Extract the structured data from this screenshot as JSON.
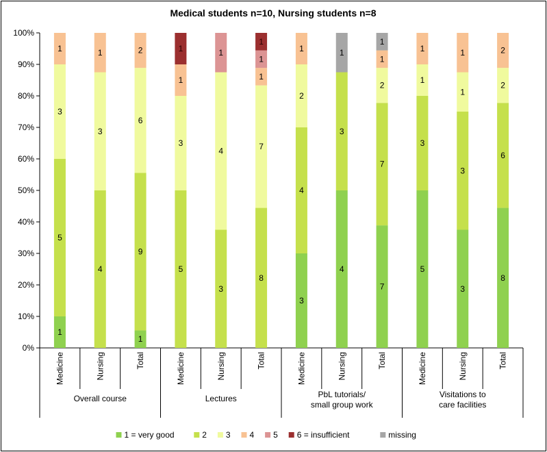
{
  "chart_data": {
    "type": "bar",
    "stacked": "percent",
    "title": "Medical students n=10, Nursing students n=8",
    "y_ticks": [
      "0%",
      "10%",
      "20%",
      "30%",
      "40%",
      "50%",
      "60%",
      "70%",
      "80%",
      "90%",
      "100%"
    ],
    "ylim": [
      0,
      100
    ],
    "grid": false,
    "legend_position": "bottom",
    "groups": [
      {
        "label_lines": [
          "Overall course"
        ],
        "categories": [
          {
            "label": "Medicine",
            "counts": [
              1,
              5,
              3,
              1,
              0,
              0,
              0
            ]
          },
          {
            "label": "Nursing",
            "counts": [
              0,
              4,
              3,
              1,
              0,
              0,
              0
            ]
          },
          {
            "label": "Total",
            "counts": [
              1,
              9,
              6,
              2,
              0,
              0,
              0
            ]
          }
        ]
      },
      {
        "label_lines": [
          "Lectures"
        ],
        "categories": [
          {
            "label": "Medicine",
            "counts": [
              0,
              5,
              3,
              1,
              0,
              1,
              0
            ]
          },
          {
            "label": "Nursing",
            "counts": [
              0,
              3,
              4,
              0,
              1,
              0,
              0
            ]
          },
          {
            "label": "Total",
            "counts": [
              0,
              8,
              7,
              1,
              1,
              1,
              0
            ]
          }
        ]
      },
      {
        "label_lines": [
          "PbL tutorials/",
          "small group work"
        ],
        "categories": [
          {
            "label": "Medicine",
            "counts": [
              3,
              4,
              2,
              1,
              0,
              0,
              0
            ]
          },
          {
            "label": "Nursing",
            "counts": [
              4,
              3,
              0,
              0,
              0,
              0,
              1
            ]
          },
          {
            "label": "Total",
            "counts": [
              7,
              7,
              2,
              1,
              0,
              0,
              1
            ]
          }
        ]
      },
      {
        "label_lines": [
          "Visitations to",
          "care facilities"
        ],
        "categories": [
          {
            "label": "Medicine",
            "counts": [
              5,
              3,
              1,
              1,
              0,
              0,
              0
            ]
          },
          {
            "label": "Nursing",
            "counts": [
              3,
              3,
              1,
              1,
              0,
              0,
              0
            ]
          },
          {
            "label": "Total",
            "counts": [
              8,
              6,
              2,
              2,
              0,
              0,
              0
            ]
          }
        ]
      }
    ],
    "series": [
      {
        "name": "1 = very good",
        "color": "#8fd14f"
      },
      {
        "name": "2",
        "color": "#c5e04c"
      },
      {
        "name": "3",
        "color": "#f0fa9e"
      },
      {
        "name": "4",
        "color": "#f8c293"
      },
      {
        "name": "5",
        "color": "#dc9494"
      },
      {
        "name": "6 = insufficient",
        "color": "#9b2f2f"
      },
      {
        "name": "missing",
        "color": "#a6a6a6"
      }
    ]
  }
}
